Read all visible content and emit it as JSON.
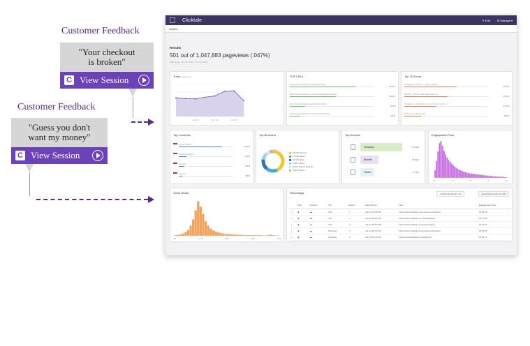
{
  "callouts": [
    {
      "title": "Customer Feedback",
      "quote_line1": "\"Your checkout",
      "quote_line2": "is broken\"",
      "button": "View Session"
    },
    {
      "title": "Customer Feedback",
      "quote_line1": "\"Guess you don't",
      "quote_line2": "want my money\"",
      "button": "View Session"
    }
  ],
  "app": {
    "logo": "Clicktale",
    "edit": "Edit",
    "manage": "Manage",
    "search": "Search",
    "results_title": "Results",
    "results_count": "501 out of 1,047,883 pageviews (.047%)",
    "results_sub": "Date range: Jan 15, 2019 - Jan 22, 2019",
    "trend": {
      "title": "Trend",
      "subtitle": "pageviews",
      "x_ticks": [
        "Jan 17",
        "Jan 19",
        "Jan 21"
      ]
    },
    "top_urls": {
      "title": "TOP URLs",
      "rows": [
        {
          "url": "https://www.clicktale.com/checkout/pay",
          "value": "52.3%",
          "fill": 0.78
        },
        {
          "url": "https://www.clicktale.com/customer/checkout/index",
          "value": "30.2%",
          "fill": 0.55
        },
        {
          "url": "https://www.clicktale.com/checkout/cart",
          "value": "8.3%",
          "fill": 0.18
        },
        {
          "url": "https://www.clicktale.com/product/item/id12",
          "value": "6.2%",
          "fill": 0.12
        }
      ]
    },
    "top_js_errors": {
      "title": "Top JS Errors",
      "rows": [
        {
          "url": "Uncaught exception: (object Object)",
          "value": "28.1%",
          "fill": 0.62
        },
        {
          "url": "Method_STATE_ERR (Exception 11)",
          "value": "24.5%",
          "fill": 0.52
        },
        {
          "url": "TypeError: undefined is not a function (at line 7)",
          "value": "17.4%",
          "fill": 0.38
        },
        {
          "url": "Script error (at line 42)",
          "value": "8.5%",
          "fill": 0.2
        }
      ]
    },
    "top_countries": {
      "title": "Top Countries",
      "rows": [
        {
          "name": "United States",
          "value": "75.4%",
          "fill": 0.8
        },
        {
          "name": "United Kingdom",
          "value": "8.1%",
          "fill": 0.14
        },
        {
          "name": "Canada",
          "value": "5.4%",
          "fill": 0.1
        },
        {
          "name": "France",
          "value": "3.2%",
          "fill": 0.07
        }
      ]
    },
    "top_browsers": {
      "title": "Top Browsers",
      "legend": [
        {
          "label": "41.10% Chrome",
          "color": "#f2c43a"
        },
        {
          "label": "17.20% Safari",
          "color": "#4aa3df"
        },
        {
          "label": "15.70% Edge",
          "color": "#3a6fb8"
        },
        {
          "label": "9.40% Firefox",
          "color": "#9fd3f0"
        },
        {
          "label": "6.82% Internet Explorer",
          "color": "#e0e0e0"
        },
        {
          "label": "5.12% Others",
          "color": "#b8b8b8"
        }
      ]
    },
    "top_devices": {
      "title": "Top Devices",
      "rows": [
        {
          "label": "Desktop",
          "value": "71.20%",
          "color": "#d8ecc8",
          "fill": 0.6
        },
        {
          "label": "Mobile",
          "value": "22.60%",
          "color": "#e8dff3",
          "fill": 0.26
        },
        {
          "label": "Tablet",
          "value": "6.10%",
          "color": "#e6f1f6",
          "fill": 0.2
        }
      ]
    },
    "engagement": {
      "title": "Engagement Time",
      "x_ticks": [
        "20",
        "40",
        "60",
        "1m",
        "2m"
      ]
    },
    "scroll_reach": {
      "title": "Scroll Reach",
      "x_ticks": [
        "0%",
        "20%",
        "40%",
        "60%",
        "80%"
      ]
    },
    "recordings": {
      "title": "Recordings",
      "download_log": "Download log (13 rec)",
      "download_csv": "Download results as CSV",
      "columns": [
        "",
        "Play",
        "Country",
        "OS",
        "Device",
        "Date & Time",
        "URL",
        "Engagement Time"
      ],
      "rows": [
        {
          "os": "Mac",
          "date": "Jan 22 22:56 PM",
          "url": "https://www.clicktale.com/customer/checkout",
          "time": "00:01:26"
        },
        {
          "os": "iOS",
          "date": "Jan 22 09:55 PM",
          "url": "https://www.clicktale.com/checkout/pay",
          "time": "00:01:58"
        },
        {
          "os": "iOS",
          "date": "Jan 22 08:57 PM",
          "url": "https://www.clicktale.com/checkout/pay",
          "time": "00:01:04"
        },
        {
          "os": "Windows",
          "date": "Jan 22 09:21 PM",
          "url": "https://www.clicktale.com/customer/checkout",
          "time": "00:01:59"
        },
        {
          "os": "Windows",
          "date": "Jan 22 03:13 PM",
          "url": "https://www.clicktale.com/help/chat",
          "time": "00:01:12"
        }
      ]
    }
  },
  "chart_data": [
    {
      "type": "area",
      "title": "Trend",
      "x": [
        "Jan 15",
        "Jan 16",
        "Jan 17",
        "Jan 18",
        "Jan 19",
        "Jan 20",
        "Jan 21",
        "Jan 22"
      ],
      "values": [
        58,
        56,
        55,
        60,
        64,
        78,
        80,
        50
      ],
      "ylim": [
        0,
        100
      ]
    },
    {
      "type": "bar",
      "title": "Engagement Time",
      "values": [
        20,
        45,
        70,
        92,
        98,
        85,
        72,
        62,
        54,
        48,
        43,
        38,
        34,
        30,
        27,
        24,
        22,
        20,
        18,
        16,
        15,
        14,
        13,
        12,
        12,
        11,
        10,
        10,
        9,
        9,
        8,
        8,
        7,
        7,
        6,
        6,
        5,
        5,
        5,
        4,
        4,
        4,
        3,
        3,
        3,
        3,
        2,
        2
      ],
      "ylim": [
        0,
        100
      ]
    },
    {
      "type": "bar",
      "title": "Scroll Reach",
      "values": [
        2,
        3,
        4,
        6,
        10,
        16,
        28,
        45,
        70,
        95,
        80,
        60,
        40,
        28,
        20,
        15,
        12,
        10,
        8,
        6,
        5,
        5,
        4,
        4,
        3,
        3,
        3,
        2,
        2,
        2,
        2,
        2,
        2,
        2,
        2,
        1,
        1,
        2,
        3,
        2,
        1,
        1
      ],
      "ylim": [
        0,
        100
      ]
    }
  ]
}
